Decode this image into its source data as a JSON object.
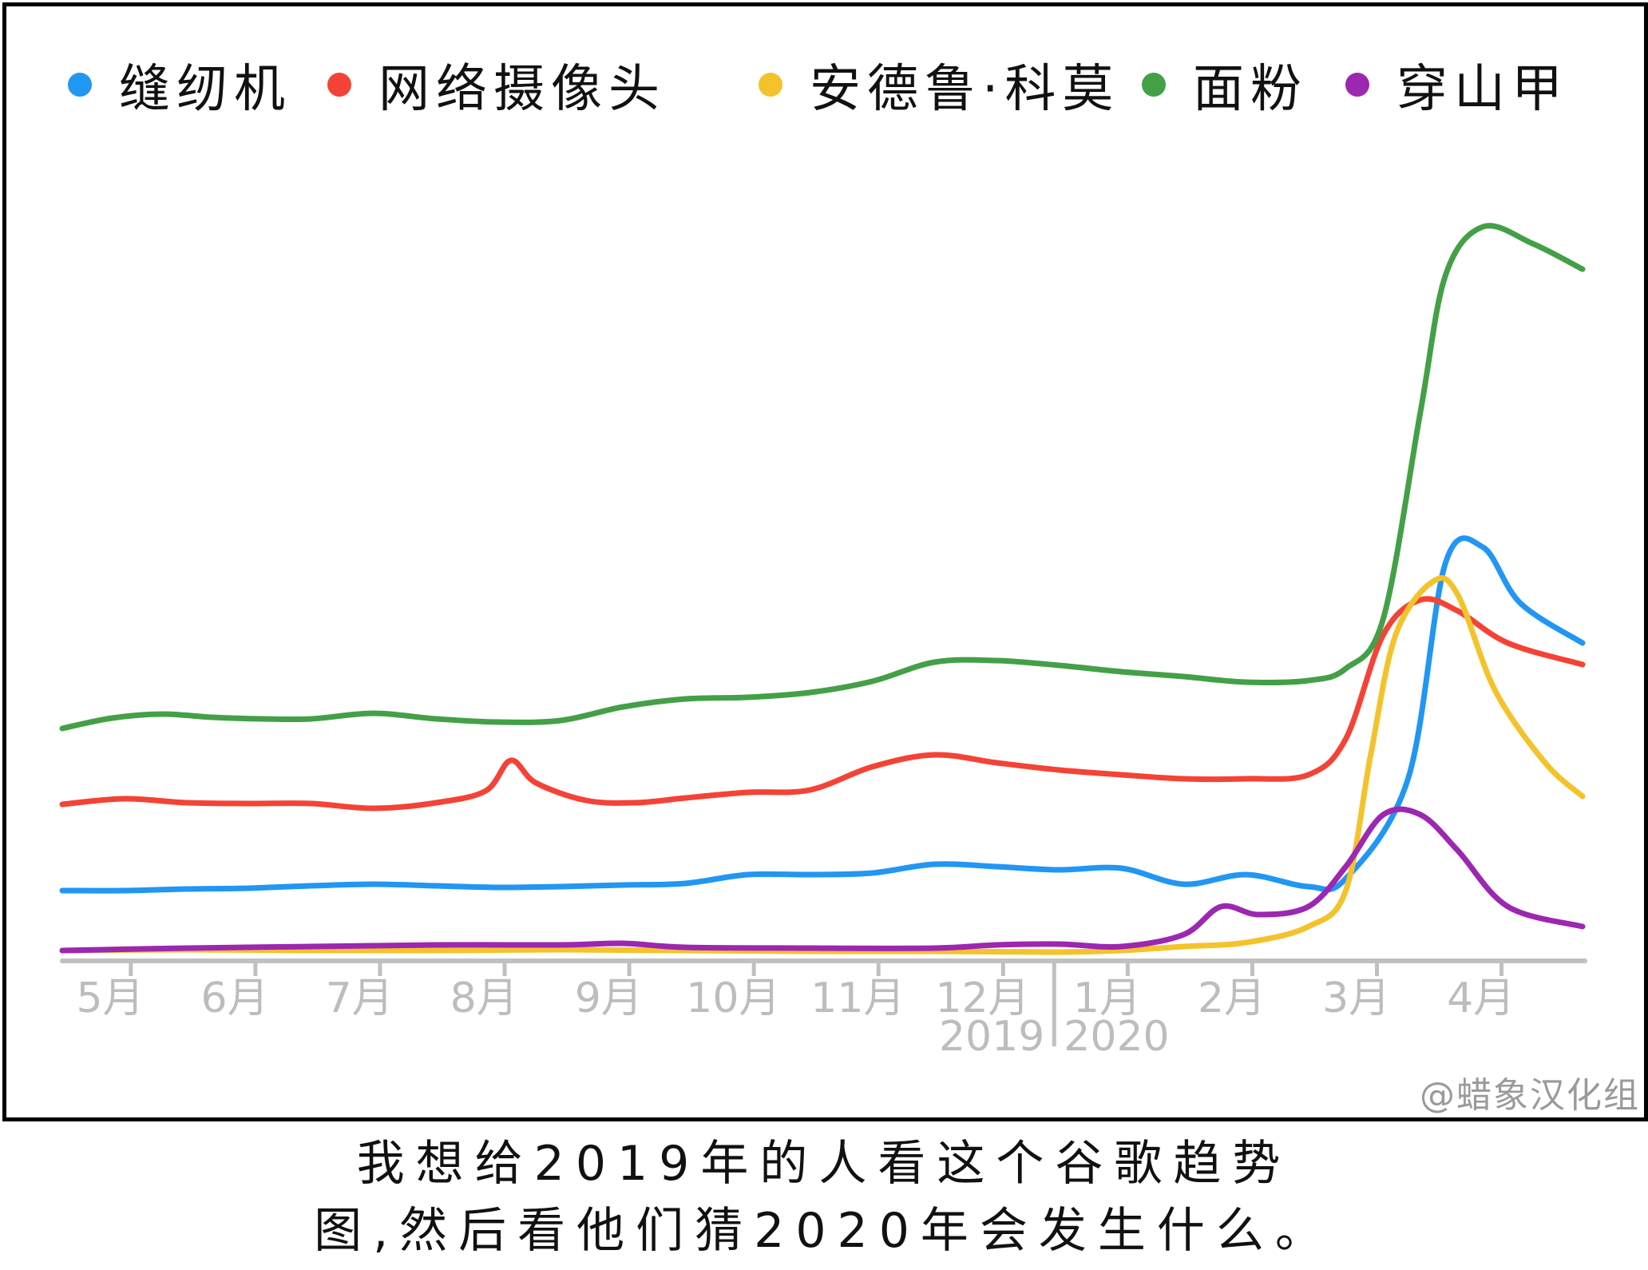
{
  "chart_data": {
    "type": "line",
    "title": "",
    "xlabel": "",
    "ylabel": "",
    "x": [
      "5月",
      "6月",
      "7月",
      "8月",
      "9月",
      "10月",
      "11月",
      "12月",
      "1月",
      "2月",
      "3月",
      "4月"
    ],
    "year_labels": [
      "2019",
      "2020"
    ],
    "grid": false,
    "legend_position": "top",
    "ylim": [
      0,
      100
    ],
    "series": [
      {
        "name": "缝纫机",
        "color": "#2196f3",
        "points": [
          [
            0,
            8
          ],
          [
            0.5,
            8
          ],
          [
            1,
            8.2
          ],
          [
            1.5,
            8.3
          ],
          [
            2,
            8.6
          ],
          [
            2.5,
            8.8
          ],
          [
            3,
            8.6
          ],
          [
            3.5,
            8.4
          ],
          [
            4,
            8.5
          ],
          [
            4.5,
            8.7
          ],
          [
            5,
            8.9
          ],
          [
            5.5,
            10
          ],
          [
            6,
            10
          ],
          [
            6.5,
            10.2
          ],
          [
            7,
            11.3
          ],
          [
            7.5,
            11
          ],
          [
            8,
            10.6
          ],
          [
            8.5,
            10.8
          ],
          [
            9,
            8.8
          ],
          [
            9.5,
            10
          ],
          [
            10,
            8.5
          ],
          [
            10.3,
            9.5
          ],
          [
            10.8,
            22
          ],
          [
            11.1,
            49
          ],
          [
            11.4,
            51
          ],
          [
            11.7,
            44
          ],
          [
            12.2,
            39
          ]
        ]
      },
      {
        "name": "网络摄像头",
        "color": "#f44336",
        "points": [
          [
            0,
            18.8
          ],
          [
            0.5,
            19.5
          ],
          [
            1,
            19
          ],
          [
            1.5,
            18.9
          ],
          [
            2,
            18.9
          ],
          [
            2.5,
            18.3
          ],
          [
            3,
            19
          ],
          [
            3.4,
            20.5
          ],
          [
            3.6,
            24.3
          ],
          [
            3.8,
            21.5
          ],
          [
            4.2,
            19.3
          ],
          [
            4.6,
            19
          ],
          [
            5,
            19.6
          ],
          [
            5.5,
            20.3
          ],
          [
            6,
            20.6
          ],
          [
            6.5,
            23.5
          ],
          [
            7,
            25
          ],
          [
            7.5,
            24
          ],
          [
            8,
            23.1
          ],
          [
            8.5,
            22.5
          ],
          [
            9,
            22
          ],
          [
            9.5,
            22
          ],
          [
            10,
            22.5
          ],
          [
            10.3,
            27
          ],
          [
            10.6,
            40
          ],
          [
            10.9,
            44.4
          ],
          [
            11.2,
            43
          ],
          [
            11.6,
            39
          ],
          [
            12.2,
            36.3
          ]
        ]
      },
      {
        "name": "安德鲁·科莫",
        "color": "#f4c22b",
        "points": [
          [
            0,
            0.5
          ],
          [
            1,
            0.6
          ],
          [
            2,
            0.5
          ],
          [
            3,
            0.5
          ],
          [
            4,
            0.6
          ],
          [
            5,
            0.5
          ],
          [
            6,
            0.4
          ],
          [
            7,
            0.4
          ],
          [
            8,
            0.3
          ],
          [
            8.5,
            0.5
          ],
          [
            9,
            1
          ],
          [
            9.5,
            1.5
          ],
          [
            10,
            3.5
          ],
          [
            10.3,
            8
          ],
          [
            10.5,
            25
          ],
          [
            10.7,
            40
          ],
          [
            11,
            46.7
          ],
          [
            11.2,
            45
          ],
          [
            11.5,
            33
          ],
          [
            11.9,
            24
          ],
          [
            12.2,
            19.8
          ]
        ]
      },
      {
        "name": "面粉",
        "color": "#43a047",
        "points": [
          [
            0,
            28.3
          ],
          [
            0.4,
            29.6
          ],
          [
            0.8,
            30.1
          ],
          [
            1.2,
            29.7
          ],
          [
            1.6,
            29.5
          ],
          [
            2,
            29.5
          ],
          [
            2.5,
            30.2
          ],
          [
            3,
            29.5
          ],
          [
            3.5,
            29.1
          ],
          [
            4,
            29.3
          ],
          [
            4.5,
            31
          ],
          [
            5,
            32
          ],
          [
            5.5,
            32.2
          ],
          [
            6,
            32.8
          ],
          [
            6.5,
            34.2
          ],
          [
            7,
            36.6
          ],
          [
            7.5,
            36.8
          ],
          [
            8,
            36.2
          ],
          [
            8.5,
            35.4
          ],
          [
            9,
            34.8
          ],
          [
            9.5,
            34.1
          ],
          [
            10,
            34.3
          ],
          [
            10.3,
            35.8
          ],
          [
            10.6,
            42
          ],
          [
            10.9,
            68
          ],
          [
            11.1,
            85
          ],
          [
            11.4,
            91.1
          ],
          [
            11.8,
            89
          ],
          [
            12.2,
            85.8
          ]
        ]
      },
      {
        "name": "穿山甲",
        "color": "#9c27b0",
        "points": [
          [
            0,
            0.5
          ],
          [
            1,
            0.8
          ],
          [
            2,
            1
          ],
          [
            3,
            1.2
          ],
          [
            4,
            1.2
          ],
          [
            4.5,
            1.4
          ],
          [
            5,
            0.9
          ],
          [
            6,
            0.8
          ],
          [
            7,
            0.8
          ],
          [
            7.5,
            1.2
          ],
          [
            8,
            1.3
          ],
          [
            8.5,
            1
          ],
          [
            9,
            2.5
          ],
          [
            9.3,
            6
          ],
          [
            9.6,
            5
          ],
          [
            10,
            6
          ],
          [
            10.3,
            11
          ],
          [
            10.6,
            17.5
          ],
          [
            10.9,
            17.5
          ],
          [
            11.2,
            13
          ],
          [
            11.6,
            6
          ],
          [
            12.2,
            3.5
          ]
        ]
      }
    ]
  },
  "legend": [
    {
      "label": "缝纫机",
      "color": "#2196f3"
    },
    {
      "label": "网络摄像头",
      "color": "#f44336"
    },
    {
      "label": "安德鲁·科莫",
      "color": "#f4c22b"
    },
    {
      "label": "面粉",
      "color": "#43a047"
    },
    {
      "label": "穿山甲",
      "color": "#9c27b0"
    }
  ],
  "watermark": "@蜡象汉化组",
  "caption": {
    "line1": "我想给2019年的人看这个谷歌趋势",
    "line2": "图,然后看他们猜2020年会发生什么。"
  }
}
